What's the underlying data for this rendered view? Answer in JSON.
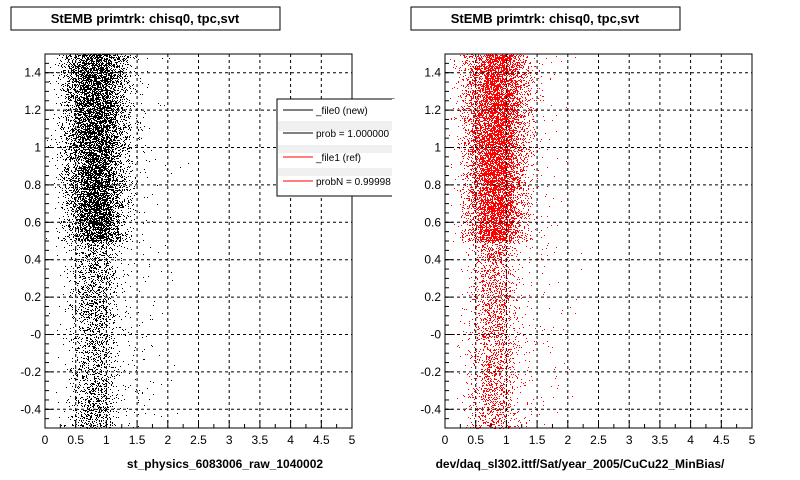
{
  "panels": [
    {
      "title": "StEMB primtrk: chisq0, tpc,svt",
      "xlabel": "st_physics_6083006_raw_1040002",
      "marker_color": "#000000",
      "legend": {
        "entries": [
          {
            "label": "_file0 (new)",
            "color": "#000000"
          },
          {
            "label": "prob = 1.000000",
            "color": "#000000"
          },
          {
            "label": "_file1 (ref)",
            "color": "#ff0000"
          },
          {
            "label": "probN = 0.99998",
            "color": "#ff0000"
          }
        ]
      }
    },
    {
      "title": "StEMB primtrk: chisq0, tpc,svt",
      "xlabel": "dev/daq_sl302.ittf/Sat/year_2005/CuCu22_MinBias/",
      "marker_color": "#ff0000"
    }
  ],
  "axis": {
    "x_ticks": [
      "0",
      "0.5",
      "1",
      "1.5",
      "2",
      "2.5",
      "3",
      "3.5",
      "4",
      "4.5",
      "5"
    ],
    "y_ticks": [
      "-0.4",
      "-0.2",
      "-0",
      "0.2",
      "0.4",
      "0.6",
      "0.8",
      "1",
      "1.2",
      "1.4"
    ]
  },
  "chart_data": [
    {
      "type": "scatter",
      "title": "StEMB primtrk: chisq0, tpc,svt",
      "xlabel": "st_physics_6083006_raw_1040002",
      "ylabel": "",
      "xlim": [
        0,
        5
      ],
      "ylim": [
        -0.5,
        1.5
      ],
      "grid": true,
      "legend_placement": "top-right",
      "series": [
        {
          "name": "_file0 (new)",
          "color": "#000000",
          "density_note": "dense band x 0.3-1.4 for y 0.5-1.5, sparse x 0.3-1.3 for y -0.5-0.5",
          "dense_region": {
            "x": [
              0.25,
              1.4
            ],
            "y": [
              0.5,
              1.5
            ]
          },
          "sparse_region": {
            "x": [
              0.3,
              1.3
            ],
            "y": [
              -0.5,
              0.5
            ]
          }
        }
      ]
    },
    {
      "type": "scatter",
      "title": "StEMB primtrk: chisq0, tpc,svt",
      "xlabel": "dev/daq_sl302.ittf/Sat/year_2005/CuCu22_MinBias/",
      "ylabel": "",
      "xlim": [
        0,
        5
      ],
      "ylim": [
        -0.5,
        1.5
      ],
      "grid": true,
      "series": [
        {
          "name": "_file1 (ref)",
          "color": "#ff0000",
          "dense_region": {
            "x": [
              0.25,
              1.4
            ],
            "y": [
              0.5,
              1.5
            ]
          },
          "sparse_region": {
            "x": [
              0.3,
              1.3
            ],
            "y": [
              -0.5,
              0.5
            ]
          }
        }
      ]
    }
  ]
}
